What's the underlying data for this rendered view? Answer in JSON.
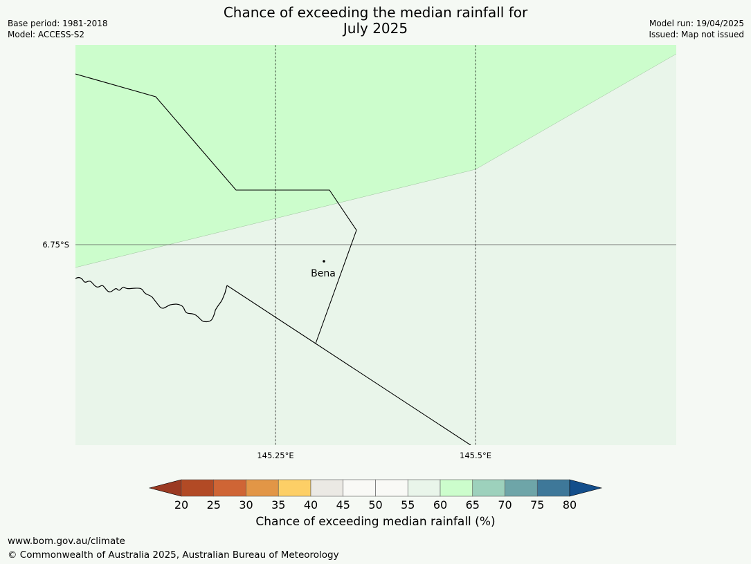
{
  "title": {
    "line1": "Chance of exceeding the median rainfall for",
    "line2": "July 2025"
  },
  "meta_left": {
    "base_period": "Base period: 1981-2018",
    "model": "Model: ACCESS-S2"
  },
  "meta_right": {
    "model_run": "Model run: 19/04/2025",
    "issued": "Issued: Map not issued"
  },
  "map": {
    "latitude_labels": [
      "6.75°S"
    ],
    "longitude_labels": [
      "145.25°E",
      "145.5°E"
    ],
    "place": "Bena",
    "colors": {
      "upper_band": "#ccfdcc",
      "lower_band": "#e9f5ea",
      "gridline": "#000000"
    }
  },
  "colorbar": {
    "ticks": [
      "20",
      "25",
      "30",
      "35",
      "40",
      "45",
      "50",
      "55",
      "60",
      "65",
      "70",
      "75",
      "80"
    ],
    "colors": [
      "#9b3a22",
      "#b24a25",
      "#cf6535",
      "#e29646",
      "#fdcf66",
      "#ebe9e4",
      "#f9f9f6",
      "#f9f9f6",
      "#e9f5ea",
      "#ccfdcc",
      "#9dd1bc",
      "#6ea5a8",
      "#3e7899",
      "#134e8b"
    ],
    "label": "Chance of exceeding median rainfall (%)"
  },
  "footer": {
    "url": "www.bom.gov.au/climate",
    "copyright": "© Commonwealth of Australia 2025, Australian Bureau of Meteorology"
  }
}
